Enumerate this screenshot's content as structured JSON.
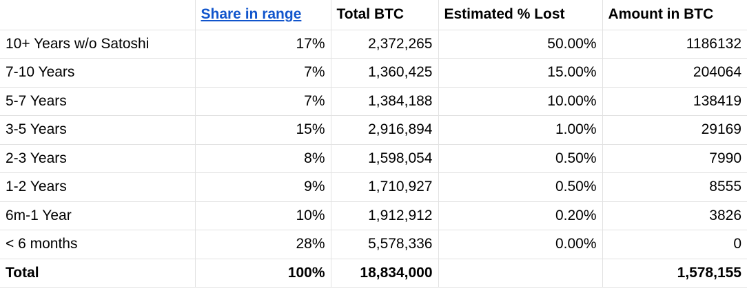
{
  "colors": {
    "grid_line": "#e2e2e2",
    "link_blue": "#1155cc",
    "text_color": "#000000",
    "bg": "#ffffff"
  },
  "table": {
    "headers": {
      "blank": "",
      "share": "Share in range",
      "total_btc": "Total BTC",
      "est_lost": "Estimated % Lost",
      "amount": "Amount in BTC"
    },
    "rows": [
      {
        "label": "10+ Years w/o Satoshi",
        "share": "17%",
        "total_btc": "2,372,265",
        "est_lost": "50.00%",
        "amount": "1186132"
      },
      {
        "label": "7-10 Years",
        "share": "7%",
        "total_btc": "1,360,425",
        "est_lost": "15.00%",
        "amount": "204064"
      },
      {
        "label": "5-7 Years",
        "share": "7%",
        "total_btc": "1,384,188",
        "est_lost": "10.00%",
        "amount": "138419"
      },
      {
        "label": "3-5 Years",
        "share": "15%",
        "total_btc": "2,916,894",
        "est_lost": "1.00%",
        "amount": "29169"
      },
      {
        "label": "2-3 Years",
        "share": "8%",
        "total_btc": "1,598,054",
        "est_lost": "0.50%",
        "amount": "7990"
      },
      {
        "label": "1-2 Years",
        "share": "9%",
        "total_btc": "1,710,927",
        "est_lost": "0.50%",
        "amount": "8555"
      },
      {
        "label": "6m-1 Year",
        "share": "10%",
        "total_btc": "1,912,912",
        "est_lost": "0.20%",
        "amount": "3826"
      },
      {
        "label": "< 6 months",
        "share": "28%",
        "total_btc": "5,578,336",
        "est_lost": "0.00%",
        "amount": "0"
      }
    ],
    "total": {
      "label": "Total",
      "share": "100%",
      "total_btc": "18,834,000",
      "est_lost": "",
      "amount": "1,578,155"
    }
  },
  "chart_data": {
    "type": "table",
    "columns": [
      "",
      "Share in range",
      "Total BTC",
      "Estimated % Lost",
      "Amount in BTC"
    ],
    "rows": [
      [
        "10+ Years w/o Satoshi",
        17,
        2372265,
        50.0,
        1186132
      ],
      [
        "7-10 Years",
        7,
        1360425,
        15.0,
        204064
      ],
      [
        "5-7 Years",
        7,
        1384188,
        10.0,
        138419
      ],
      [
        "3-5 Years",
        15,
        2916894,
        1.0,
        29169
      ],
      [
        "2-3 Years",
        8,
        1598054,
        0.5,
        7990
      ],
      [
        "1-2 Years",
        9,
        1710927,
        0.5,
        8555
      ],
      [
        "6m-1 Year",
        10,
        1912912,
        0.2,
        3826
      ],
      [
        "< 6 months",
        28,
        5578336,
        0.0,
        0
      ]
    ],
    "total_row": [
      "Total",
      100,
      18834000,
      null,
      1578155
    ],
    "notes": "Share in range column header is a blue underlined hyperlink; Total row and all headers are bold"
  }
}
